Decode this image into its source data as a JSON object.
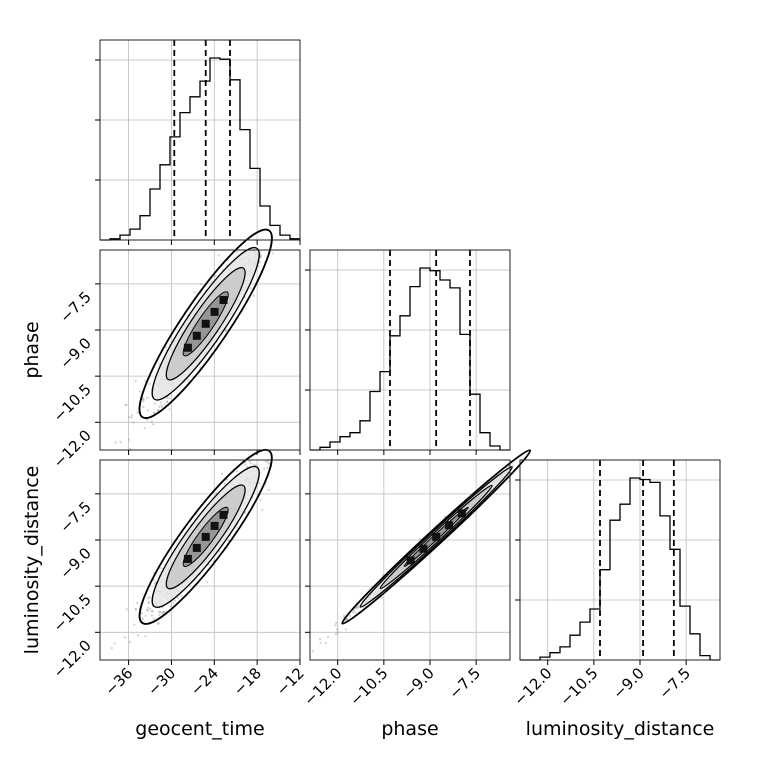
{
  "chart_data": {
    "type": "corner",
    "parameters": [
      "geocent_time",
      "phase",
      "luminosity_distance"
    ],
    "axis_labels": {
      "x": [
        "geocent_time",
        "phase",
        "luminosity_distance"
      ],
      "y": [
        "phase",
        "luminosity_distance"
      ]
    },
    "ranges": {
      "geocent_time": [
        -40,
        -12
      ],
      "phase": [
        -12.9,
        -6.4
      ],
      "luminosity_distance": [
        -12.9,
        -6.4
      ]
    },
    "ticks": {
      "geocent_time": {
        "values": [
          -36,
          -30,
          -24,
          -18,
          -12
        ],
        "labels": [
          "−36",
          "−30",
          "−24",
          "−18",
          "−12"
        ]
      },
      "phase": {
        "values": [
          -12.0,
          -10.5,
          -9.0,
          -7.5
        ],
        "labels": [
          "−12.0",
          "−10.5",
          "−9.0",
          "−7.5"
        ]
      },
      "luminosity_distance": {
        "values": [
          -12.0,
          -10.5,
          -9.0,
          -7.5
        ],
        "labels": [
          "−12.0",
          "−10.5",
          "−9.0",
          "−7.5"
        ]
      }
    },
    "quantiles": {
      "geocent_time": [
        -29.6,
        -25.2,
        -21.8
      ],
      "phase": [
        -10.3,
        -8.8,
        -7.7
      ],
      "luminosity_distance": [
        -10.3,
        -8.9,
        -7.9
      ]
    },
    "histograms": {
      "geocent_time": {
        "edges_start": -40,
        "bin_width": 1.4,
        "counts": [
          0,
          1,
          4,
          9,
          20,
          42,
          62,
          85,
          105,
          118,
          131,
          150,
          149,
          132,
          91,
          59,
          28,
          12,
          4,
          1
        ]
      },
      "phase": {
        "edges_start": -12.9,
        "bin_width": 0.325,
        "counts": [
          0,
          2,
          6,
          10,
          13,
          22,
          44,
          59,
          86,
          101,
          123,
          137,
          135,
          128,
          122,
          87,
          42,
          13,
          3,
          0
        ]
      },
      "luminosity_distance": {
        "edges_start": -12.9,
        "bin_width": 0.325,
        "counts": [
          0,
          0,
          2,
          5,
          9,
          17,
          26,
          35,
          62,
          96,
          107,
          125,
          124,
          122,
          99,
          76,
          37,
          18,
          3,
          0
        ]
      }
    },
    "grid": true
  }
}
